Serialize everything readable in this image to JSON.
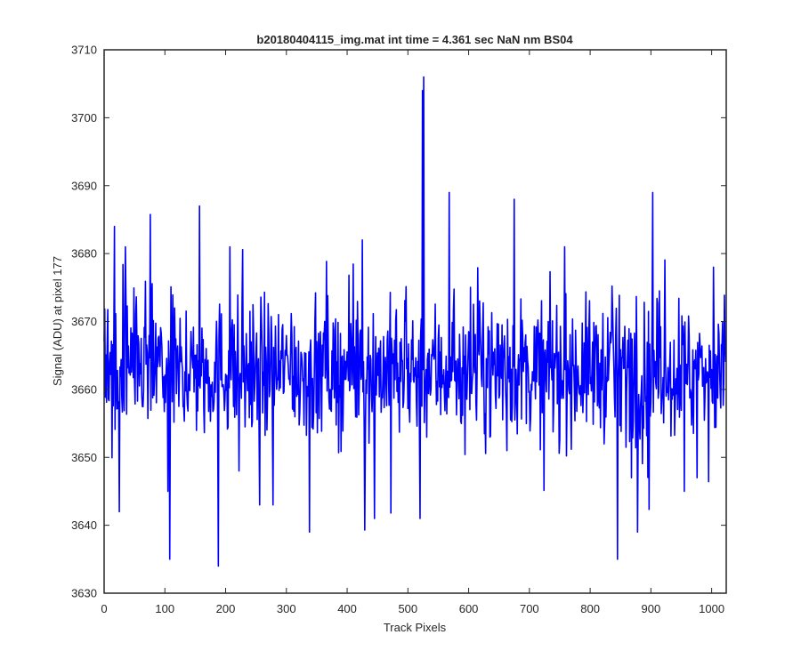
{
  "chart_data": {
    "type": "line",
    "title": "b20180404115_img.mat int time = 4.361 sec  NaN nm BS04",
    "xlabel": "Track Pixels",
    "ylabel": "Signal (ADU) at pixel 177",
    "xlim": [
      0,
      1024
    ],
    "ylim": [
      3630,
      3710
    ],
    "xticks": [
      0,
      100,
      200,
      300,
      400,
      500,
      600,
      700,
      800,
      900,
      1000
    ],
    "yticks": [
      3630,
      3640,
      3650,
      3660,
      3670,
      3680,
      3690,
      3700,
      3710
    ],
    "grid": false,
    "series": [
      {
        "color": "#0000ff",
        "baseline": 3663,
        "noise_amplitude": 5,
        "n_points": 1024,
        "peaks": [
          {
            "x": 17,
            "y": 3684
          },
          {
            "x": 35,
            "y": 3681
          },
          {
            "x": 25,
            "y": 3642
          },
          {
            "x": 105,
            "y": 3645
          },
          {
            "x": 108,
            "y": 3635
          },
          {
            "x": 157,
            "y": 3687
          },
          {
            "x": 188,
            "y": 3634
          },
          {
            "x": 207,
            "y": 3681
          },
          {
            "x": 222,
            "y": 3648
          },
          {
            "x": 278,
            "y": 3643
          },
          {
            "x": 338,
            "y": 3639
          },
          {
            "x": 425,
            "y": 3682
          },
          {
            "x": 445,
            "y": 3641
          },
          {
            "x": 520,
            "y": 3641
          },
          {
            "x": 524,
            "y": 3704
          },
          {
            "x": 526,
            "y": 3706
          },
          {
            "x": 568,
            "y": 3689
          },
          {
            "x": 675,
            "y": 3688
          },
          {
            "x": 758,
            "y": 3681
          },
          {
            "x": 845,
            "y": 3635
          },
          {
            "x": 868,
            "y": 3647
          },
          {
            "x": 878,
            "y": 3639
          },
          {
            "x": 903,
            "y": 3689
          },
          {
            "x": 955,
            "y": 3645
          },
          {
            "x": 1003,
            "y": 3678
          }
        ]
      }
    ]
  }
}
